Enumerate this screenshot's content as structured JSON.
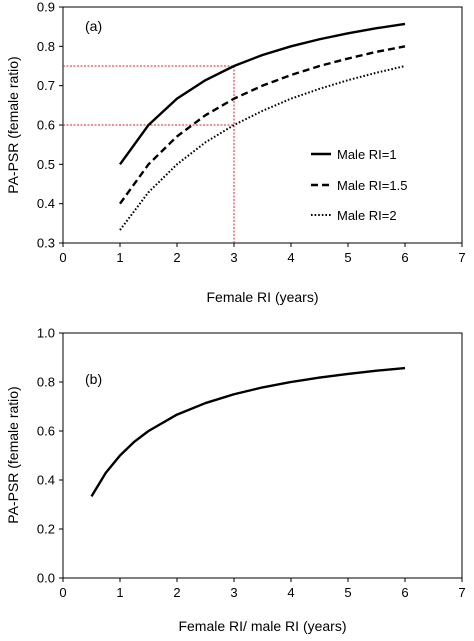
{
  "chart_data": [
    {
      "type": "line",
      "panel_label": "(a)",
      "xlabel": "Female RI (years)",
      "ylabel": "PA-PSR (female ratio)",
      "xlim": [
        0,
        7
      ],
      "ylim": [
        0.3,
        0.9
      ],
      "xticks": [
        "0",
        "1",
        "2",
        "3",
        "4",
        "5",
        "6",
        "7"
      ],
      "yticks": [
        "0.3",
        "0.4",
        "0.5",
        "0.6",
        "0.7",
        "0.8",
        "0.9"
      ],
      "grid": false,
      "legend_position": "center-right",
      "series": [
        {
          "name": "Male RI=1",
          "style": "solid",
          "x": [
            1,
            1.5,
            2,
            2.5,
            3,
            3.5,
            4,
            4.5,
            5,
            5.5,
            6
          ],
          "y": [
            0.5,
            0.6,
            0.667,
            0.714,
            0.75,
            0.778,
            0.8,
            0.818,
            0.833,
            0.846,
            0.857
          ]
        },
        {
          "name": "Male RI=1.5",
          "style": "dashed",
          "x": [
            1,
            1.5,
            2,
            2.5,
            3,
            3.5,
            4,
            4.5,
            5,
            5.5,
            6
          ],
          "y": [
            0.4,
            0.5,
            0.571,
            0.625,
            0.667,
            0.7,
            0.727,
            0.75,
            0.769,
            0.786,
            0.8
          ]
        },
        {
          "name": "Male RI=2",
          "style": "dotted",
          "x": [
            1,
            1.5,
            2,
            2.5,
            3,
            3.5,
            4,
            4.5,
            5,
            5.5,
            6
          ],
          "y": [
            0.333,
            0.429,
            0.5,
            0.556,
            0.6,
            0.636,
            0.667,
            0.692,
            0.714,
            0.733,
            0.75
          ]
        }
      ],
      "annotations": {
        "color": "#e8202a",
        "vertical_x": 3,
        "horizontal_y": [
          0.75,
          0.6
        ]
      }
    },
    {
      "type": "line",
      "panel_label": "(b)",
      "xlabel": "Female RI/ male RI (years)",
      "ylabel": "PA-PSR (female ratio)",
      "xlim": [
        0,
        7
      ],
      "ylim": [
        0.0,
        1.0
      ],
      "xticks": [
        "0",
        "1",
        "2",
        "3",
        "4",
        "5",
        "6",
        "7"
      ],
      "yticks": [
        "0.0",
        "0.2",
        "0.4",
        "0.6",
        "0.8",
        "1.0"
      ],
      "grid": false,
      "series": [
        {
          "style": "solid",
          "x": [
            0.5,
            0.75,
            1,
            1.25,
            1.5,
            2,
            2.5,
            3,
            3.5,
            4,
            4.5,
            5,
            5.5,
            6
          ],
          "y": [
            0.333,
            0.429,
            0.5,
            0.556,
            0.6,
            0.667,
            0.714,
            0.75,
            0.778,
            0.8,
            0.818,
            0.833,
            0.846,
            0.857
          ]
        }
      ]
    }
  ]
}
